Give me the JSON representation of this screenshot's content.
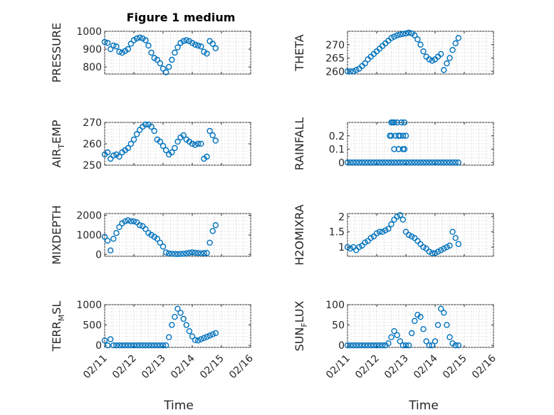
{
  "marker_color": "#0072BD",
  "chart_data": [
    {
      "type": "scatter",
      "title": "Figure 1 medium",
      "ylabel": "PRESSURE",
      "ylim": [
        760,
        1000
      ],
      "yticks": [
        800,
        900,
        1000
      ],
      "xlim": [
        "02/11",
        "02/16"
      ],
      "xticks": [
        "02/11",
        "02/12",
        "02/13",
        "02/14",
        "02/15",
        "02/16"
      ],
      "show_xticklabels": false,
      "grid": true,
      "series": [
        {
          "x": [
            0.0,
            0.1,
            0.2,
            0.3,
            0.4,
            0.5,
            0.6,
            0.7,
            0.8,
            0.9,
            1.0,
            1.1,
            1.2,
            1.3,
            1.4,
            1.5,
            1.6,
            1.7,
            1.8,
            1.9,
            2.0,
            2.1,
            2.2,
            2.3,
            2.4,
            2.5,
            2.6,
            2.7,
            2.8,
            2.9,
            3.0,
            3.1,
            3.2,
            3.3,
            3.4,
            3.5,
            3.6,
            3.7,
            3.8
          ],
          "y": [
            940,
            935,
            900,
            920,
            915,
            885,
            880,
            890,
            900,
            930,
            950,
            960,
            965,
            960,
            950,
            920,
            880,
            850,
            840,
            820,
            790,
            770,
            800,
            840,
            880,
            910,
            935,
            945,
            950,
            945,
            935,
            925,
            920,
            915,
            885,
            875,
            945,
            930,
            905
          ]
        }
      ]
    },
    {
      "type": "scatter",
      "title": "",
      "ylabel": "THETA",
      "ylim": [
        259,
        275
      ],
      "yticks": [
        260,
        265,
        270
      ],
      "xlim": [
        "02/11",
        "02/16"
      ],
      "xticks": [
        "02/11",
        "02/12",
        "02/13",
        "02/14",
        "02/15",
        "02/16"
      ],
      "show_xticklabels": false,
      "grid": true,
      "series": [
        {
          "x": [
            0.0,
            0.1,
            0.2,
            0.3,
            0.4,
            0.5,
            0.6,
            0.7,
            0.8,
            0.9,
            1.0,
            1.1,
            1.2,
            1.3,
            1.4,
            1.5,
            1.6,
            1.7,
            1.8,
            1.9,
            2.0,
            2.1,
            2.2,
            2.3,
            2.4,
            2.5,
            2.6,
            2.7,
            2.8,
            2.9,
            3.0,
            3.1,
            3.2,
            3.3,
            3.4,
            3.5,
            3.6,
            3.7,
            3.8
          ],
          "y": [
            260,
            260,
            260,
            260.5,
            261,
            262,
            263,
            264.5,
            265.5,
            266.5,
            267.5,
            268.5,
            269.5,
            270.5,
            271.5,
            272.5,
            273,
            273.5,
            273.8,
            274,
            274.2,
            274.5,
            274.2,
            273.5,
            272,
            270,
            267.5,
            265.5,
            264.5,
            264,
            264.5,
            265.5,
            266.5,
            260.5,
            263,
            265,
            268,
            270.5,
            272.5
          ]
        }
      ]
    },
    {
      "type": "scatter",
      "title": "",
      "ylabel": "AIR_TEMP",
      "ylim": [
        250,
        270
      ],
      "yticks": [
        250,
        260,
        270
      ],
      "xlim": [
        "02/11",
        "02/16"
      ],
      "xticks": [
        "02/11",
        "02/12",
        "02/13",
        "02/14",
        "02/15",
        "02/16"
      ],
      "show_xticklabels": false,
      "grid": true,
      "series": [
        {
          "x": [
            0.0,
            0.1,
            0.2,
            0.3,
            0.4,
            0.5,
            0.6,
            0.7,
            0.8,
            0.9,
            1.0,
            1.1,
            1.2,
            1.3,
            1.4,
            1.5,
            1.6,
            1.7,
            1.8,
            1.9,
            2.0,
            2.1,
            2.2,
            2.3,
            2.4,
            2.5,
            2.6,
            2.7,
            2.8,
            2.9,
            3.0,
            3.1,
            3.2,
            3.3,
            3.4,
            3.5,
            3.6,
            3.7,
            3.8
          ],
          "y": [
            255,
            256,
            253,
            254.5,
            255,
            254,
            256,
            257,
            258,
            260,
            262,
            264.5,
            266.5,
            268,
            269,
            269,
            268,
            266,
            262,
            261,
            259,
            257,
            255,
            256,
            258,
            261,
            263,
            264,
            262,
            261,
            260,
            259.5,
            260,
            260,
            253,
            254,
            266,
            264,
            261.5
          ]
        }
      ]
    },
    {
      "type": "scatter",
      "title": "",
      "ylabel": "RAINFALL",
      "ylim": [
        -0.02,
        0.3
      ],
      "yticks": [
        0,
        0.1,
        0.2
      ],
      "ytick_labels": [
        "0",
        "0.1",
        "0.2"
      ],
      "xlim": [
        "02/11",
        "02/16"
      ],
      "xticks": [
        "02/11",
        "02/12",
        "02/13",
        "02/14",
        "02/15",
        "02/16"
      ],
      "show_xticklabels": false,
      "grid": true,
      "series": [
        {
          "x": [
            0.0,
            0.1,
            0.2,
            0.3,
            0.4,
            0.5,
            0.6,
            0.7,
            0.8,
            0.9,
            1.0,
            1.1,
            1.2,
            1.3,
            1.4,
            1.5,
            1.6,
            1.7,
            1.8,
            1.9,
            2.0,
            2.1,
            2.2,
            2.3,
            2.4,
            2.5,
            2.6,
            2.7,
            2.8,
            2.9,
            3.0,
            3.1,
            3.2,
            3.3,
            3.4,
            3.5,
            3.6,
            3.7,
            3.8,
            1.45,
            1.5,
            1.55,
            1.6,
            1.65,
            1.7,
            1.75,
            1.8,
            1.85,
            1.9,
            1.95,
            2.0,
            1.5,
            1.6,
            1.75,
            1.9,
            1.95
          ],
          "y": [
            0,
            0,
            0,
            0,
            0,
            0,
            0,
            0,
            0,
            0,
            0,
            0,
            0,
            0,
            0,
            0,
            0,
            0,
            0,
            0,
            0,
            0,
            0,
            0,
            0,
            0,
            0,
            0,
            0,
            0,
            0,
            0,
            0,
            0,
            0,
            0,
            0,
            0,
            0,
            0.2,
            0.3,
            0.3,
            0.3,
            0.2,
            0.3,
            0.2,
            0.2,
            0.3,
            0.2,
            0.3,
            0.2,
            0.2,
            0.1,
            0.1,
            0.1,
            0.1
          ]
        }
      ]
    },
    {
      "type": "scatter",
      "title": "",
      "ylabel": "MIXDEPTH",
      "ylim": [
        -100,
        2100
      ],
      "yticks": [
        0,
        1000,
        2000
      ],
      "xlim": [
        "02/11",
        "02/16"
      ],
      "xticks": [
        "02/11",
        "02/12",
        "02/13",
        "02/14",
        "02/15",
        "02/16"
      ],
      "show_xticklabels": false,
      "grid": true,
      "series": [
        {
          "x": [
            0.0,
            0.1,
            0.2,
            0.3,
            0.4,
            0.5,
            0.6,
            0.7,
            0.8,
            0.9,
            1.0,
            1.1,
            1.2,
            1.3,
            1.4,
            1.5,
            1.6,
            1.7,
            1.8,
            1.9,
            2.0,
            2.1,
            2.2,
            2.3,
            2.4,
            2.5,
            2.6,
            2.7,
            2.8,
            2.9,
            3.0,
            3.1,
            3.2,
            3.3,
            3.4,
            3.5,
            3.6,
            3.7,
            3.8
          ],
          "y": [
            900,
            700,
            200,
            800,
            1100,
            1400,
            1600,
            1700,
            1750,
            1700,
            1700,
            1650,
            1500,
            1450,
            1300,
            1100,
            1000,
            900,
            800,
            600,
            400,
            100,
            50,
            30,
            20,
            10,
            20,
            30,
            50,
            80,
            100,
            80,
            60,
            50,
            60,
            70,
            600,
            1200,
            1500
          ]
        }
      ]
    },
    {
      "type": "scatter",
      "title": "",
      "ylabel": "H2OMIXRA",
      "ylim": [
        0.7,
        2.1
      ],
      "yticks": [
        1,
        1.5,
        2
      ],
      "xlim": [
        "02/11",
        "02/16"
      ],
      "xticks": [
        "02/11",
        "02/12",
        "02/13",
        "02/14",
        "02/15",
        "02/16"
      ],
      "show_xticklabels": false,
      "grid": true,
      "series": [
        {
          "x": [
            0.0,
            0.1,
            0.2,
            0.3,
            0.4,
            0.5,
            0.6,
            0.7,
            0.8,
            0.9,
            1.0,
            1.1,
            1.2,
            1.3,
            1.4,
            1.5,
            1.6,
            1.7,
            1.8,
            1.9,
            2.0,
            2.1,
            2.2,
            2.3,
            2.4,
            2.5,
            2.6,
            2.7,
            2.8,
            2.9,
            3.0,
            3.1,
            3.2,
            3.3,
            3.4,
            3.5,
            3.6,
            3.7,
            3.8
          ],
          "y": [
            1.0,
            0.95,
            1.0,
            0.9,
            1.0,
            1.05,
            1.15,
            1.2,
            1.3,
            1.35,
            1.45,
            1.5,
            1.5,
            1.55,
            1.6,
            1.75,
            1.9,
            2.0,
            2.05,
            1.9,
            1.5,
            1.4,
            1.35,
            1.3,
            1.2,
            1.1,
            1.0,
            0.95,
            0.85,
            0.8,
            0.8,
            0.85,
            0.9,
            0.95,
            1.0,
            1.05,
            1.5,
            1.3,
            1.1
          ]
        }
      ]
    },
    {
      "type": "scatter",
      "title": "",
      "ylabel": "TERR_MSL",
      "ylim": [
        -50,
        1000
      ],
      "yticks": [
        0,
        500,
        1000
      ],
      "xlim": [
        "02/11",
        "02/16"
      ],
      "xticks": [
        "02/11",
        "02/12",
        "02/13",
        "02/14",
        "02/15",
        "02/16"
      ],
      "show_xticklabels": true,
      "grid": true,
      "series": [
        {
          "x": [
            0.0,
            0.1,
            0.2,
            0.3,
            0.4,
            0.5,
            0.6,
            0.7,
            0.8,
            0.9,
            1.0,
            1.1,
            1.2,
            1.3,
            1.4,
            1.5,
            1.6,
            1.7,
            1.8,
            1.9,
            2.0,
            2.1,
            2.2,
            2.3,
            2.4,
            2.5,
            2.6,
            2.7,
            2.8,
            2.9,
            3.0,
            3.1,
            3.2,
            3.3,
            3.4,
            3.5,
            3.6,
            3.7,
            3.8
          ],
          "y": [
            120,
            0,
            150,
            0,
            0,
            0,
            0,
            0,
            0,
            0,
            0,
            0,
            0,
            0,
            0,
            0,
            0,
            0,
            0,
            0,
            0,
            0,
            200,
            500,
            700,
            900,
            800,
            650,
            500,
            350,
            220,
            130,
            120,
            150,
            180,
            210,
            240,
            270,
            300
          ]
        }
      ]
    },
    {
      "type": "scatter",
      "title": "",
      "ylabel": "SUN_FLUX",
      "ylim": [
        -5,
        100
      ],
      "yticks": [
        0,
        50,
        100
      ],
      "xlim": [
        "02/11",
        "02/16"
      ],
      "xticks": [
        "02/11",
        "02/12",
        "02/13",
        "02/14",
        "02/15",
        "02/16"
      ],
      "show_xticklabels": true,
      "grid": true,
      "series": [
        {
          "x": [
            0.0,
            0.1,
            0.2,
            0.3,
            0.4,
            0.5,
            0.6,
            0.7,
            0.8,
            0.9,
            1.0,
            1.1,
            1.2,
            1.3,
            1.4,
            1.5,
            1.6,
            1.7,
            1.8,
            1.9,
            2.0,
            2.1,
            2.2,
            2.3,
            2.4,
            2.5,
            2.6,
            2.7,
            2.8,
            2.9,
            3.0,
            3.1,
            3.2,
            3.3,
            3.4,
            3.5,
            3.6,
            3.7,
            3.8
          ],
          "y": [
            0,
            0,
            0,
            0,
            0,
            0,
            0,
            0,
            0,
            0,
            0,
            0,
            0,
            0,
            5,
            20,
            35,
            25,
            10,
            0,
            0,
            0,
            30,
            60,
            75,
            70,
            40,
            10,
            0,
            0,
            10,
            50,
            90,
            80,
            50,
            20,
            5,
            0,
            0
          ]
        }
      ]
    }
  ],
  "xlabel": "Time"
}
